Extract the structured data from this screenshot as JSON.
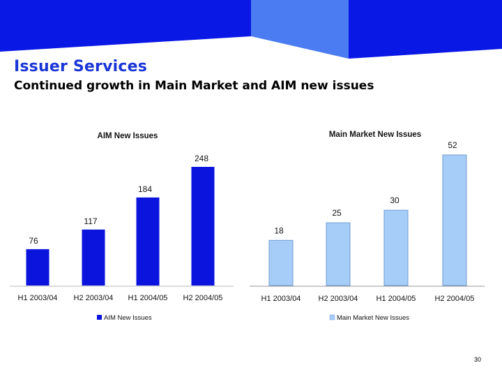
{
  "header": {
    "title": "Issuer Services",
    "subtitle": "Continued growth in Main Market and AIM new issues"
  },
  "colors": {
    "banner_dark": "#0a18e6",
    "banner_light": "#4c7cf2",
    "aim_bar": "#0a14dc",
    "main_bar": "#a6cdf7",
    "main_bar_stroke": "#6f9bd0",
    "title_text": "#1a35d6"
  },
  "page_number": "30",
  "chart_data": [
    {
      "type": "bar",
      "title": "AIM New Issues",
      "categories": [
        "H1 2003/04",
        "H2 2003/04",
        "H1 2004/05",
        "H2 2004/05"
      ],
      "series": [
        {
          "name": "AIM New Issues",
          "values": [
            76,
            117,
            184,
            248
          ]
        }
      ],
      "ylim": [
        0,
        260
      ],
      "grid": false,
      "legend": "bottom"
    },
    {
      "type": "bar",
      "title": "Main Market New Issues",
      "categories": [
        "H1 2003/04",
        "H2 2003/04",
        "H1 2004/05",
        "H2 2004/05"
      ],
      "series": [
        {
          "name": "Main Market New Issues",
          "values": [
            18,
            25,
            30,
            52
          ]
        }
      ],
      "ylim": [
        0,
        55
      ],
      "grid": false,
      "legend": "bottom"
    }
  ]
}
